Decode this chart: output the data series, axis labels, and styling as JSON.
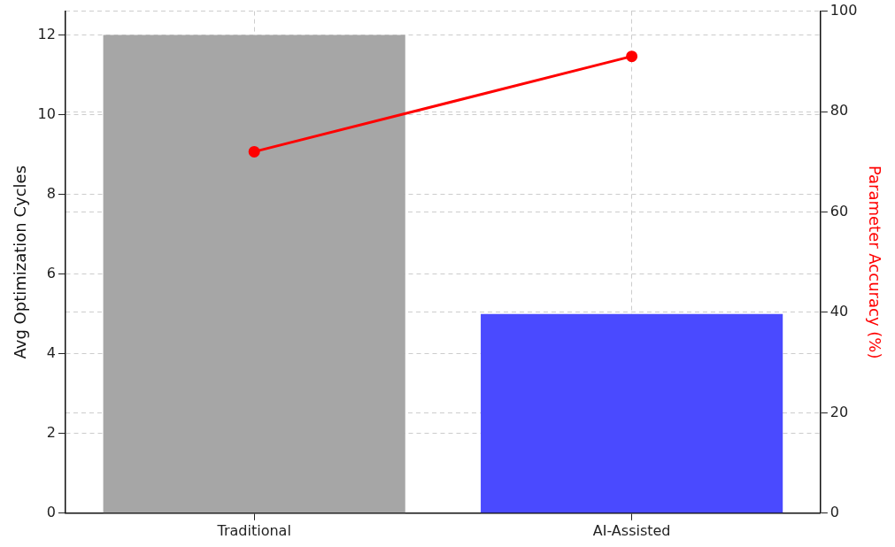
{
  "chart_data": {
    "type": "bar",
    "categories": [
      "Traditional",
      "AI-Assisted"
    ],
    "ylabel": "Avg Optimization Cycles",
    "y2label": "Parameter Accuracy (%)",
    "ylim": [
      0,
      12.6
    ],
    "yticks": [
      0,
      2,
      4,
      6,
      8,
      10,
      12
    ],
    "y2lim": [
      0,
      100
    ],
    "y2ticks": [
      0,
      20,
      40,
      60,
      80,
      100
    ],
    "grid": true,
    "legend": false,
    "series": [
      {
        "colors": [
          "#a6a6a6",
          "#4a4aff"
        ],
        "values": [
          12,
          5
        ]
      },
      {
        "type": "line",
        "axis": "y2",
        "color": "#ff0000",
        "values": [
          72,
          91
        ],
        "marker": "circle",
        "line_style": "solid"
      }
    ]
  }
}
